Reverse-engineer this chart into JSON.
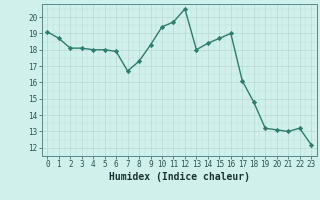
{
  "x": [
    0,
    1,
    2,
    3,
    4,
    5,
    6,
    7,
    8,
    9,
    10,
    11,
    12,
    13,
    14,
    15,
    16,
    17,
    18,
    19,
    20,
    21,
    22,
    23
  ],
  "y": [
    19.1,
    18.7,
    18.1,
    18.1,
    18.0,
    18.0,
    17.9,
    16.7,
    17.3,
    18.3,
    19.4,
    19.7,
    20.5,
    18.0,
    18.4,
    18.7,
    19.0,
    16.1,
    14.8,
    13.2,
    13.1,
    13.0,
    13.2,
    12.2
  ],
  "line_color": "#2e7d6e",
  "marker": "D",
  "markersize": 2.2,
  "linewidth": 1.0,
  "bg_color": "#cff0eb",
  "grid_color": "#b8d8d4",
  "xlabel": "Humidex (Indice chaleur)",
  "xlabel_fontsize": 7,
  "tick_fontsize": 5.5,
  "ylim": [
    11.5,
    20.8
  ],
  "xlim": [
    -0.5,
    23.5
  ],
  "yticks": [
    12,
    13,
    14,
    15,
    16,
    17,
    18,
    19,
    20
  ],
  "xticks": [
    0,
    1,
    2,
    3,
    4,
    5,
    6,
    7,
    8,
    9,
    10,
    11,
    12,
    13,
    14,
    15,
    16,
    17,
    18,
    19,
    20,
    21,
    22,
    23
  ]
}
